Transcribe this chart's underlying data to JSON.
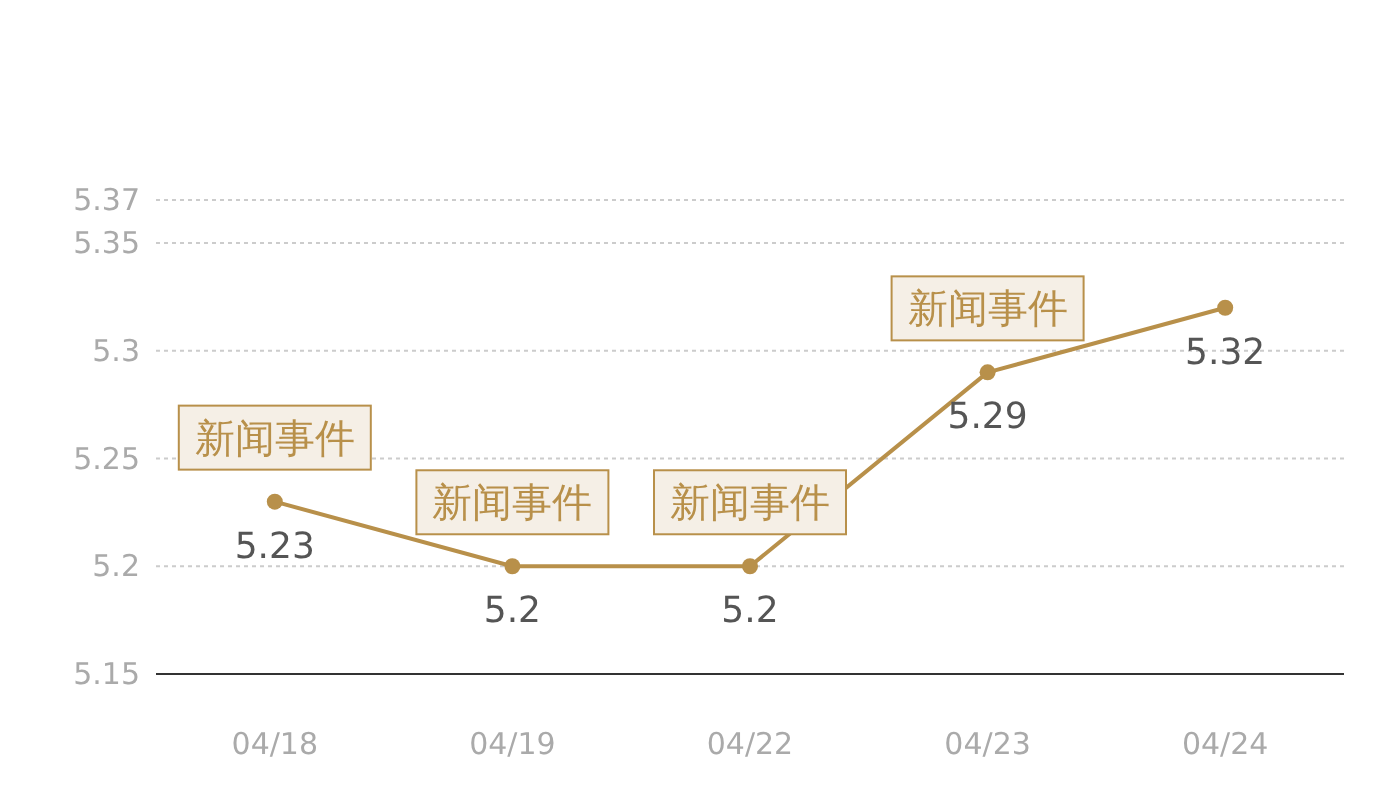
{
  "chart_data": {
    "type": "line",
    "categories": [
      "04/18",
      "04/19",
      "04/22",
      "04/23",
      "04/24"
    ],
    "series": [
      {
        "color": "#b8904a",
        "values": [
          5.23,
          5.2,
          5.2,
          5.29,
          5.32
        ]
      }
    ],
    "ylim": [
      5.15,
      5.37
    ],
    "yticks": [
      5.15,
      5.2,
      5.25,
      5.3,
      5.35,
      5.37
    ],
    "grid": "y",
    "marker": "circle",
    "line_style": "solid",
    "data_labels": true,
    "annotations": [
      {
        "text": "新闻事件",
        "x": "04/18",
        "y": 5.23
      },
      {
        "text": "新闻事件",
        "x": "04/19",
        "y": 5.2
      },
      {
        "text": "新闻事件",
        "x": "04/22",
        "y": 5.2
      },
      {
        "text": "新闻事件",
        "x": "04/23",
        "y": 5.29
      }
    ]
  }
}
